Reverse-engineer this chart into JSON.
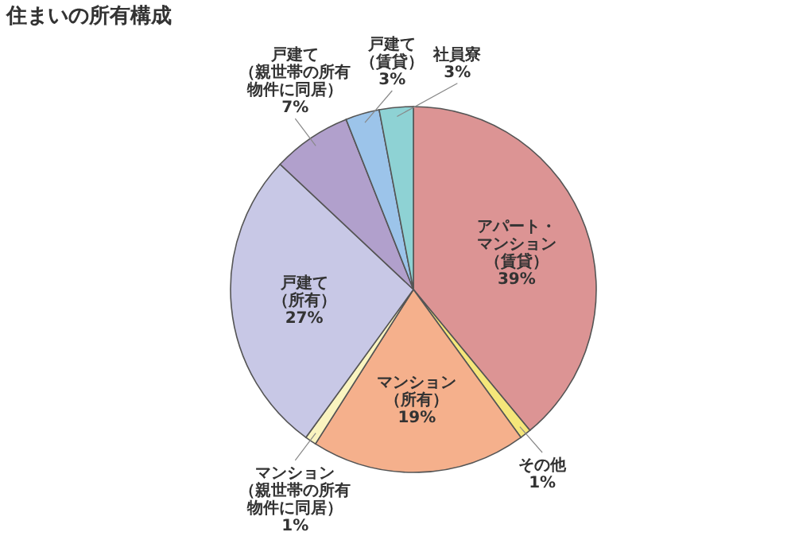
{
  "chart_data": {
    "type": "pie",
    "title": "住まいの所有構成",
    "categories": [
      "アパート・マンション（賃貸）",
      "その他",
      "マンション（所有）",
      "マンション（親世帯の所有物件に同居）",
      "戸建て（所有）",
      "戸建て（親世帯の所有物件に同居）",
      "戸建て（賃貸）",
      "社員寮"
    ],
    "values": [
      39,
      1,
      19,
      1,
      27,
      7,
      3,
      3
    ],
    "value_labels": [
      "39%",
      "1%",
      "19%",
      "1%",
      "27%",
      "7%",
      "3%",
      "3%"
    ],
    "colors": [
      "#dc9494",
      "#f5e67a",
      "#f5b08c",
      "#faf4c0",
      "#c8c8e6",
      "#b1a0cc",
      "#9cc4ea",
      "#8ed2d4"
    ]
  }
}
